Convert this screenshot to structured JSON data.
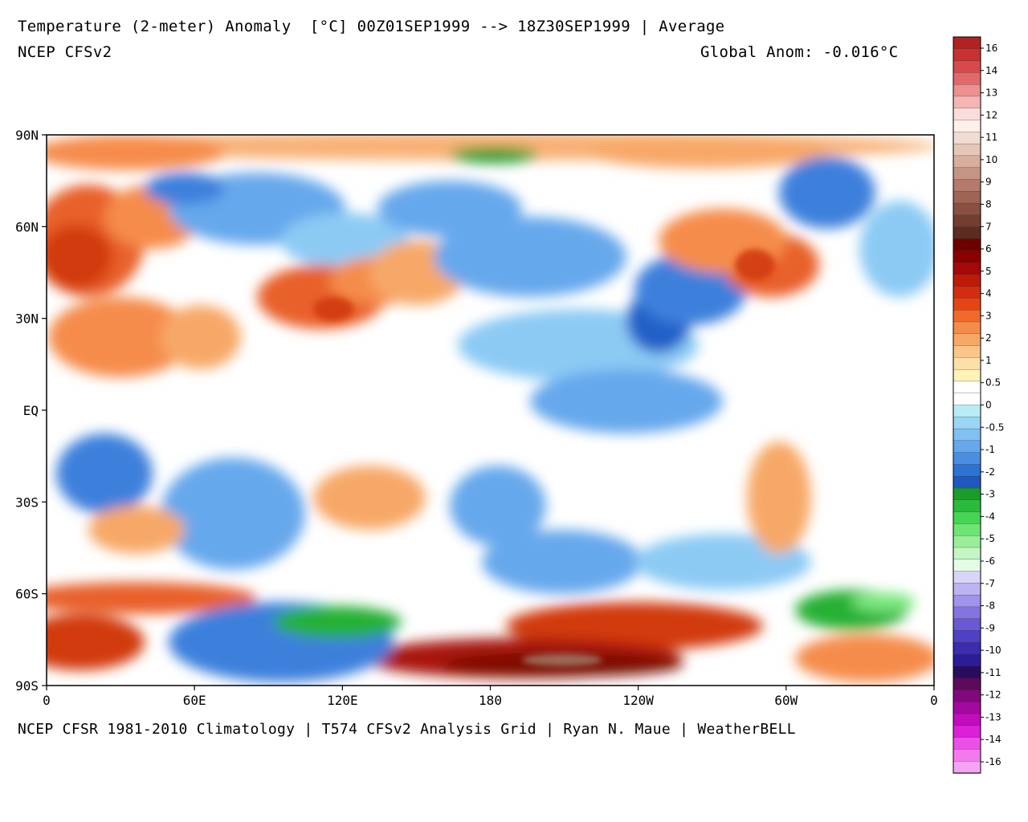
{
  "header": {
    "title": "Temperature (2-meter) Anomaly  [°C] 00Z01SEP1999 --> 18Z30SEP1999 | Average",
    "model": "NCEP CFSv2",
    "global_anom": "Global Anom: -0.016°C"
  },
  "footer": {
    "credits": "NCEP CFSR 1981-2010 Climatology | T574 CFSv2 Analysis Grid | Ryan N. Maue | WeatherBELL"
  },
  "axes": {
    "lat_labels": [
      "90N",
      "60N",
      "30N",
      "EQ",
      "30S",
      "60S",
      "90S"
    ],
    "lon_labels": [
      "0",
      "60E",
      "120E",
      "180",
      "120W",
      "60W",
      "0"
    ]
  },
  "colorbar": {
    "labels": [
      "16",
      "14",
      "13",
      "12",
      "11",
      "10",
      "9",
      "8",
      "7",
      "6",
      "5",
      "4",
      "3",
      "2",
      "1",
      "0.5",
      "0",
      "-0.5",
      "-1",
      "-2",
      "-3",
      "-4",
      "-5",
      "-6",
      "-7",
      "-8",
      "-9",
      "-10",
      "-11",
      "-12",
      "-13",
      "-14",
      "-16"
    ],
    "colors": [
      "#b22222",
      "#c83232",
      "#d74a4a",
      "#e06a6a",
      "#ec9090",
      "#f5b5b5",
      "#fbdcdc",
      "#fff0ea",
      "#f0dcd2",
      "#e6c6b8",
      "#d8ae9e",
      "#c69484",
      "#b47a6c",
      "#9e6454",
      "#885040",
      "#723e30",
      "#5c2c22",
      "#6e0000",
      "#8a0000",
      "#a40808",
      "#be1a0a",
      "#d42c10",
      "#e64414",
      "#f26a2a",
      "#f58c4c",
      "#f7a868",
      "#fac688",
      "#fde0a8",
      "#fdf2b8",
      "#ffffff",
      "#ffffff",
      "#b6ecf6",
      "#9cd6f5",
      "#82c0f2",
      "#66a8ec",
      "#4a8ee2",
      "#2e72d4",
      "#1e58c0",
      "#1c9c2c",
      "#2cba3c",
      "#46d452",
      "#6ee474",
      "#9aee9a",
      "#c4f6c4",
      "#e6fbe6",
      "#d8d4f8",
      "#bcb4f2",
      "#a094ea",
      "#8474e0",
      "#6a58d4",
      "#5040c4",
      "#3c2cb0",
      "#2c1c98",
      "#2a0c5c",
      "#5c0a5a",
      "#82087e",
      "#a4089e",
      "#c20cbe",
      "#dc20d8",
      "#ea50e6",
      "#f27aee",
      "#f6a4f2"
    ]
  },
  "map": {
    "background": "#ffffff",
    "palette": {
      "warm1": "#fbd090",
      "warm2": "#f7a868",
      "warm3": "#f58c4c",
      "warm4": "#e8602a",
      "warm5": "#d23a10",
      "warm6": "#a81808",
      "warm7": "#7a0a02",
      "brown": "#a07262",
      "cool1": "#b6ecf6",
      "cool2": "#8ccaf4",
      "cool3": "#66a8ec",
      "cool4": "#3c80dc",
      "cool5": "#2060c8",
      "green1": "#28b034",
      "green2": "#1e9a2a",
      "green3": "#7ce880"
    }
  }
}
